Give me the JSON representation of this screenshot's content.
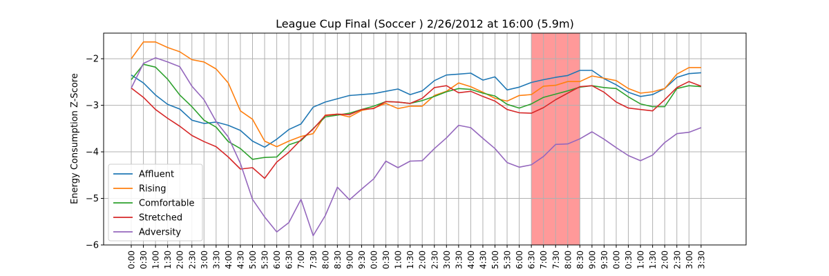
{
  "chart_data": {
    "type": "line",
    "title": "League Cup Final (Soccer ) 2/26/2012 at 16:00 (5.9m)",
    "xlabel": "",
    "ylabel": "Energy Consumption Z-Score",
    "ylim": [
      -6.0,
      -1.45
    ],
    "yticks": [
      -6,
      -5,
      -4,
      -3,
      -2
    ],
    "ytick_labels": [
      "−6",
      "−5",
      "−4",
      "−3",
      "−2"
    ],
    "categories": [
      "0:00",
      "0:30",
      "1:00",
      "1:30",
      "2:00",
      "2:30",
      "3:00",
      "3:30",
      "4:00",
      "4:30",
      "5:00",
      "5:30",
      "6:00",
      "6:30",
      "7:00",
      "7:30",
      "8:00",
      "8:30",
      "9:00",
      "9:30",
      "0:00",
      "0:30",
      "1:00",
      "1:30",
      "2:00",
      "2:30",
      "3:00",
      "3:30",
      "4:00",
      "4:30",
      "5:00",
      "5:30",
      "6:00",
      "6:30",
      "7:00",
      "7:30",
      "8:00",
      "8:30",
      "9:00",
      "9:30",
      "0:00",
      "0:30",
      "1:00",
      "1:30",
      "2:00",
      "2:30",
      "3:00",
      "3:30"
    ],
    "grid": true,
    "legend_position": "lower-left",
    "highlight": {
      "start_index": 33,
      "end_index": 37,
      "color": "#ff8080"
    },
    "series": [
      {
        "name": "Affluent",
        "color": "#1f77b4",
        "values": [
          -2.35,
          -2.52,
          -2.78,
          -2.98,
          -3.08,
          -3.32,
          -3.39,
          -3.36,
          -3.43,
          -3.54,
          -3.77,
          -3.9,
          -3.73,
          -3.52,
          -3.4,
          -3.04,
          -2.93,
          -2.86,
          -2.79,
          -2.77,
          -2.75,
          -2.7,
          -2.65,
          -2.77,
          -2.69,
          -2.47,
          -2.35,
          -2.33,
          -2.31,
          -2.46,
          -2.39,
          -2.67,
          -2.61,
          -2.51,
          -2.45,
          -2.4,
          -2.36,
          -2.25,
          -2.25,
          -2.43,
          -2.56,
          -2.72,
          -2.81,
          -2.77,
          -2.64,
          -2.4,
          -2.32,
          -2.3
        ]
      },
      {
        "name": "Rising",
        "color": "#ff7f0e",
        "values": [
          -2.0,
          -1.64,
          -1.64,
          -1.76,
          -1.85,
          -2.02,
          -2.07,
          -2.22,
          -2.52,
          -3.12,
          -3.3,
          -3.77,
          -3.89,
          -3.77,
          -3.67,
          -3.61,
          -3.21,
          -3.19,
          -3.25,
          -3.11,
          -3.06,
          -2.96,
          -3.07,
          -3.02,
          -3.02,
          -2.79,
          -2.7,
          -2.52,
          -2.6,
          -2.72,
          -2.85,
          -2.91,
          -2.79,
          -2.77,
          -2.59,
          -2.57,
          -2.49,
          -2.49,
          -2.37,
          -2.42,
          -2.47,
          -2.64,
          -2.74,
          -2.71,
          -2.64,
          -2.33,
          -2.19,
          -2.19
        ]
      },
      {
        "name": "Comfortable",
        "color": "#2ca02c",
        "values": [
          -2.45,
          -2.12,
          -2.18,
          -2.44,
          -2.78,
          -3.03,
          -3.32,
          -3.47,
          -3.78,
          -3.93,
          -4.16,
          -4.12,
          -4.11,
          -3.85,
          -3.76,
          -3.5,
          -3.25,
          -3.21,
          -3.17,
          -3.09,
          -3.02,
          -2.92,
          -2.93,
          -2.96,
          -2.9,
          -2.81,
          -2.71,
          -2.64,
          -2.66,
          -2.74,
          -2.8,
          -2.98,
          -3.06,
          -2.97,
          -2.83,
          -2.76,
          -2.69,
          -2.61,
          -2.58,
          -2.62,
          -2.64,
          -2.82,
          -2.97,
          -3.03,
          -3.03,
          -2.64,
          -2.58,
          -2.6
        ]
      },
      {
        "name": "Stretched",
        "color": "#d62728",
        "values": [
          -2.63,
          -2.83,
          -3.09,
          -3.28,
          -3.45,
          -3.65,
          -3.78,
          -3.89,
          -4.11,
          -4.37,
          -4.34,
          -4.57,
          -4.22,
          -4.01,
          -3.74,
          -3.51,
          -3.22,
          -3.19,
          -3.2,
          -3.09,
          -3.07,
          -2.92,
          -2.93,
          -2.96,
          -2.85,
          -2.62,
          -2.58,
          -2.73,
          -2.7,
          -2.81,
          -2.91,
          -3.09,
          -3.16,
          -3.17,
          -3.05,
          -2.88,
          -2.74,
          -2.6,
          -2.58,
          -2.72,
          -2.93,
          -3.06,
          -3.09,
          -3.12,
          -2.88,
          -2.62,
          -2.49,
          -2.59
        ]
      },
      {
        "name": "Adversity",
        "color": "#9467bd",
        "values": [
          -2.63,
          -2.1,
          -1.98,
          -2.07,
          -2.17,
          -2.59,
          -2.88,
          -3.35,
          -3.68,
          -4.25,
          -5.02,
          -5.4,
          -5.72,
          -5.52,
          -5.02,
          -5.8,
          -5.37,
          -4.76,
          -5.03,
          -4.8,
          -4.58,
          -4.2,
          -4.34,
          -4.2,
          -4.19,
          -3.93,
          -3.7,
          -3.43,
          -3.48,
          -3.71,
          -3.93,
          -4.23,
          -4.33,
          -4.28,
          -4.1,
          -3.84,
          -3.83,
          -3.72,
          -3.57,
          -3.73,
          -3.91,
          -4.08,
          -4.19,
          -4.07,
          -3.8,
          -3.61,
          -3.58,
          -3.48
        ]
      }
    ]
  }
}
